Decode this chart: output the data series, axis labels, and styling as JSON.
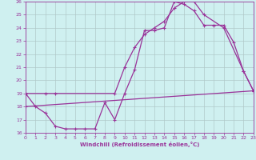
{
  "xlabel": "Windchill (Refroidissement éolien,°C)",
  "xlim": [
    0,
    23
  ],
  "ylim": [
    16,
    26
  ],
  "xticks": [
    0,
    1,
    2,
    3,
    4,
    5,
    6,
    7,
    8,
    9,
    10,
    11,
    12,
    13,
    14,
    15,
    16,
    17,
    18,
    19,
    20,
    21,
    22,
    23
  ],
  "yticks": [
    16,
    17,
    18,
    19,
    20,
    21,
    22,
    23,
    24,
    25,
    26
  ],
  "bg_color": "#cff0f0",
  "grid_color": "#b0c8c8",
  "line_color": "#993399",
  "series": [
    {
      "x": [
        0,
        1,
        2,
        3,
        4,
        5,
        6,
        7,
        8,
        9,
        10,
        11,
        12,
        13,
        14,
        15,
        16,
        17,
        18,
        19,
        20,
        21,
        22,
        23
      ],
      "y": [
        19,
        18,
        17.5,
        16.5,
        16.3,
        16.3,
        16.3,
        16.3,
        18.3,
        17.0,
        19.0,
        20.8,
        23.8,
        23.8,
        24.0,
        26.0,
        25.8,
        25.3,
        24.2,
        24.2,
        24.2,
        22.9,
        20.7,
        19.2
      ],
      "marker": true
    },
    {
      "x": [
        0,
        2,
        3,
        9,
        10,
        11,
        12,
        13,
        14,
        15,
        16,
        17,
        18,
        20,
        22,
        23
      ],
      "y": [
        19,
        19,
        19,
        19,
        21,
        22.5,
        23.5,
        24.0,
        24.5,
        25.5,
        26.0,
        26.0,
        25.0,
        24.0,
        20.7,
        19.2
      ],
      "marker": true
    },
    {
      "x": [
        0,
        23
      ],
      "y": [
        18.0,
        19.2
      ],
      "marker": true
    }
  ],
  "markersize": 2.5,
  "linewidth": 0.9
}
